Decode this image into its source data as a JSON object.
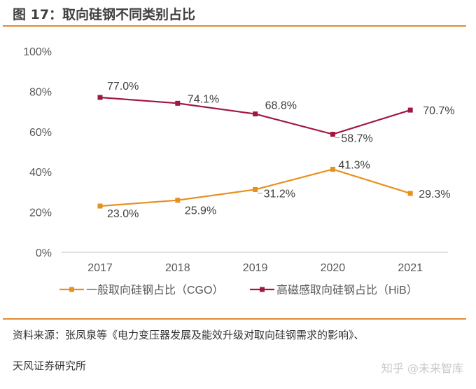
{
  "title": "图 17：取向硅钢不同类别占比",
  "source_line1": "资料来源：张凤泉等《电力变压器发展及能效升级对取向硅钢需求的影响》、",
  "source_line2": "天风证券研究所",
  "watermark": "知乎 @未来智库",
  "chart_data": {
    "type": "line",
    "categories": [
      "2017",
      "2018",
      "2019",
      "2020",
      "2021"
    ],
    "ylim": [
      0,
      100
    ],
    "yticks": [
      "0%",
      "20%",
      "40%",
      "60%",
      "80%",
      "100%"
    ],
    "grid": false,
    "legend_position": "bottom",
    "series": [
      {
        "name": "一般取向硅钢占比（CGO）",
        "color": "#e8901e",
        "values": [
          23.0,
          25.9,
          31.2,
          41.3,
          29.3
        ],
        "labels": [
          "23.0%",
          "25.9%",
          "31.2%",
          "41.3%",
          "29.3%"
        ]
      },
      {
        "name": "高磁感取向硅钢占比（HiB）",
        "color": "#a01840",
        "values": [
          77.0,
          74.1,
          68.8,
          58.7,
          70.7
        ],
        "labels": [
          "77.0%",
          "74.1%",
          "68.8%",
          "58.7%",
          "70.7%"
        ]
      }
    ]
  }
}
